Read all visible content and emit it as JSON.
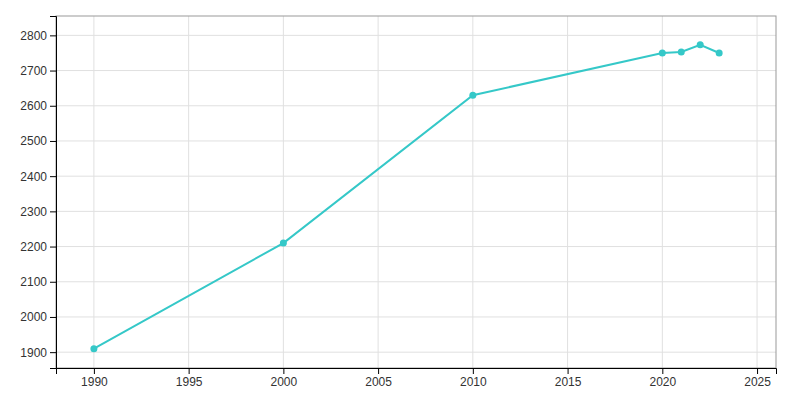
{
  "chart_data": {
    "type": "line",
    "x": [
      1990,
      2000,
      2010,
      2020,
      2021,
      2022,
      2023
    ],
    "values": [
      1910,
      2210,
      2630,
      2750,
      2753,
      2773,
      2750
    ],
    "color": "#35c8c8",
    "marker": "circle",
    "xlim": [
      1988,
      2026
    ],
    "ylim": [
      1855,
      2855
    ],
    "xticks": [
      1990,
      1995,
      2000,
      2005,
      2010,
      2015,
      2020,
      2025
    ],
    "yticks": [
      1900,
      2000,
      2100,
      2200,
      2300,
      2400,
      2500,
      2600,
      2700,
      2800
    ],
    "grid": true
  }
}
